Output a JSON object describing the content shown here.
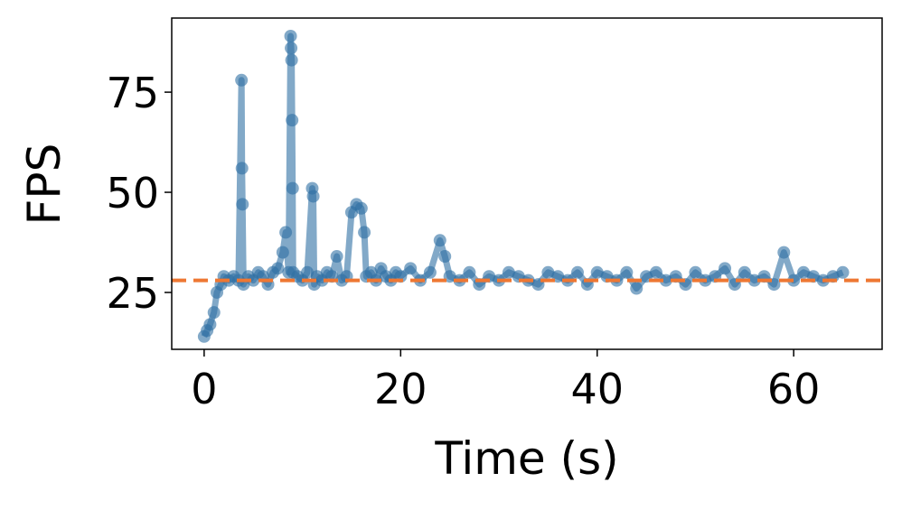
{
  "chart_data": {
    "type": "line",
    "xlabel": "Time (s)",
    "ylabel": "FPS",
    "x": [
      0,
      0.3,
      0.6,
      1.0,
      1.3,
      1.7,
      2,
      2.5,
      3,
      3.5,
      3.8,
      3.85,
      3.9,
      4,
      4.5,
      5,
      5.5,
      6,
      6.5,
      7,
      7.5,
      8,
      8.3,
      8.6,
      8.8,
      8.85,
      8.9,
      8.95,
      9.0,
      9.05,
      9.5,
      10,
      10.5,
      11,
      11.1,
      11.2,
      11.5,
      12,
      12.5,
      13,
      13.5,
      14,
      14.5,
      15,
      15.5,
      16,
      16.3,
      16.5,
      17,
      17.5,
      18,
      18.5,
      19,
      19.5,
      20,
      21,
      22,
      23,
      24,
      24.5,
      25,
      26,
      27,
      28,
      29,
      30,
      31,
      32,
      33,
      34,
      35,
      36,
      37,
      38,
      39,
      40,
      41,
      42,
      43,
      44,
      45,
      46,
      47,
      48,
      49,
      50,
      51,
      52,
      53,
      54,
      55,
      56,
      57,
      58,
      59,
      60,
      61,
      62,
      63,
      64,
      65
    ],
    "series": [
      {
        "color": "#2f6fa3",
        "values": [
          14,
          15.5,
          17,
          20,
          25,
          27,
          29,
          28,
          29,
          28,
          78,
          56,
          47,
          27,
          29,
          28,
          30,
          29,
          27,
          30,
          31,
          35,
          40,
          30,
          89,
          86,
          83,
          68,
          51,
          30,
          29,
          28,
          30,
          51,
          49,
          27,
          29,
          28,
          30,
          29,
          34,
          28,
          29,
          45,
          47,
          46,
          40,
          29,
          30,
          28,
          31,
          29,
          28,
          30,
          29,
          31,
          28,
          30,
          38,
          34,
          29,
          28,
          30,
          27,
          29,
          28,
          30,
          29,
          28,
          27,
          30,
          29,
          28,
          30,
          27,
          30,
          29,
          28,
          30,
          26,
          29,
          30,
          28,
          29,
          27,
          30,
          28,
          29,
          31,
          27,
          30,
          28,
          29,
          27,
          35,
          28,
          30,
          29,
          28,
          29,
          30
        ]
      }
    ],
    "reference_line": {
      "value": 28,
      "color": "#ee7733"
    },
    "xlim": [
      -3.3,
      69
    ],
    "ylim": [
      10.8,
      93.5
    ],
    "xticks": [
      0,
      20,
      40,
      60
    ],
    "yticks": [
      25,
      50,
      75
    ]
  }
}
